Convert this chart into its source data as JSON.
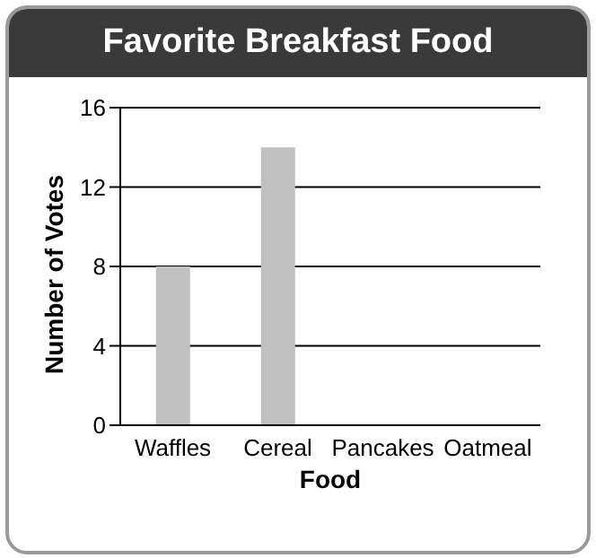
{
  "chart_data": {
    "type": "bar",
    "title": "Favorite Breakfast Food",
    "xlabel": "Food",
    "ylabel": "Number of Votes",
    "categories": [
      "Waffles",
      "Cereal",
      "Pancakes",
      "Oatmeal"
    ],
    "values": [
      8,
      14,
      null,
      null
    ],
    "color": "#c0c0c0",
    "ylim": [
      0,
      16
    ],
    "yticks": [
      0,
      4,
      8,
      12,
      16
    ],
    "grid": "y"
  }
}
